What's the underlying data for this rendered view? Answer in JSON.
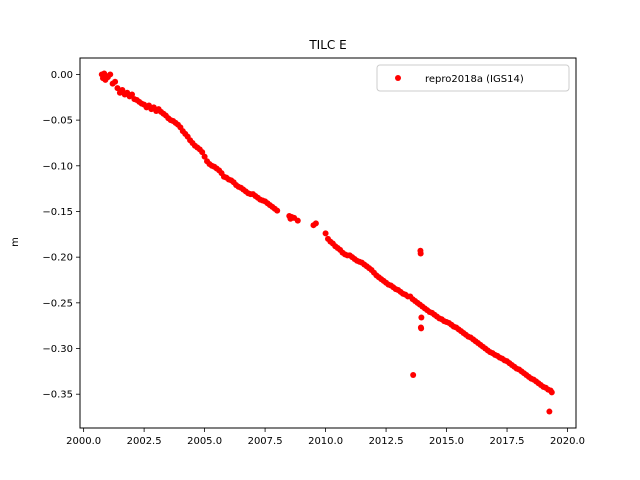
{
  "chart_data": {
    "type": "scatter",
    "title": "TILC E",
    "xlabel": "",
    "ylabel": "m",
    "xlim": [
      1999.85,
      2020.35
    ],
    "ylim": [
      -0.387,
      0.018
    ],
    "xticks": [
      2000.0,
      2002.5,
      2005.0,
      2007.5,
      2010.0,
      2012.5,
      2015.0,
      2017.5,
      2020.0
    ],
    "xtick_labels": [
      "2000.0",
      "2002.5",
      "2005.0",
      "2007.5",
      "2010.0",
      "2012.5",
      "2015.0",
      "2017.5",
      "2020.0"
    ],
    "yticks": [
      0.0,
      -0.05,
      -0.1,
      -0.15,
      -0.2,
      -0.25,
      -0.3,
      -0.35
    ],
    "ytick_labels": [
      "0.00",
      "−0.05",
      "−0.10",
      "−0.15",
      "−0.20",
      "−0.25",
      "−0.30",
      "−0.35"
    ],
    "grid": false,
    "legend_position": "top-right",
    "series": [
      {
        "name": "repro2018a (IGS14)",
        "color": "#ff0000",
        "marker": "circle",
        "points": [
          [
            2000.75,
            0.0
          ],
          [
            2000.8,
            -0.004
          ],
          [
            2000.85,
            0.001
          ],
          [
            2000.9,
            -0.006
          ],
          [
            2000.95,
            -0.002
          ],
          [
            2001.0,
            -0.003
          ],
          [
            2001.1,
            0.0
          ],
          [
            2001.2,
            -0.01
          ],
          [
            2001.3,
            -0.008
          ],
          [
            2001.4,
            -0.015
          ],
          [
            2001.5,
            -0.02
          ],
          [
            2001.6,
            -0.017
          ],
          [
            2001.7,
            -0.022
          ],
          [
            2001.8,
            -0.02
          ],
          [
            2001.9,
            -0.024
          ],
          [
            2002.0,
            -0.022
          ],
          [
            2002.1,
            -0.027
          ],
          [
            2002.2,
            -0.028
          ],
          [
            2002.3,
            -0.03
          ],
          [
            2002.4,
            -0.032
          ],
          [
            2002.5,
            -0.033
          ],
          [
            2002.6,
            -0.036
          ],
          [
            2002.7,
            -0.034
          ],
          [
            2002.8,
            -0.038
          ],
          [
            2002.9,
            -0.036
          ],
          [
            2003.0,
            -0.04
          ],
          [
            2003.1,
            -0.038
          ],
          [
            2003.2,
            -0.041
          ],
          [
            2003.3,
            -0.043
          ],
          [
            2003.4,
            -0.045
          ],
          [
            2003.5,
            -0.048
          ],
          [
            2003.6,
            -0.05
          ],
          [
            2003.7,
            -0.051
          ],
          [
            2003.8,
            -0.053
          ],
          [
            2003.9,
            -0.055
          ],
          [
            2004.0,
            -0.058
          ],
          [
            2004.1,
            -0.062
          ],
          [
            2004.2,
            -0.065
          ],
          [
            2004.3,
            -0.068
          ],
          [
            2004.4,
            -0.072
          ],
          [
            2004.5,
            -0.075
          ],
          [
            2004.6,
            -0.078
          ],
          [
            2004.7,
            -0.08
          ],
          [
            2004.8,
            -0.082
          ],
          [
            2004.9,
            -0.085
          ],
          [
            2005.0,
            -0.09
          ],
          [
            2005.1,
            -0.095
          ],
          [
            2005.2,
            -0.098
          ],
          [
            2005.3,
            -0.1
          ],
          [
            2005.4,
            -0.101
          ],
          [
            2005.5,
            -0.103
          ],
          [
            2005.6,
            -0.105
          ],
          [
            2005.7,
            -0.108
          ],
          [
            2005.8,
            -0.112
          ],
          [
            2005.9,
            -0.113
          ],
          [
            2006.0,
            -0.115
          ],
          [
            2006.1,
            -0.116
          ],
          [
            2006.2,
            -0.118
          ],
          [
            2006.3,
            -0.121
          ],
          [
            2006.4,
            -0.123
          ],
          [
            2006.5,
            -0.124
          ],
          [
            2006.6,
            -0.126
          ],
          [
            2006.7,
            -0.128
          ],
          [
            2006.8,
            -0.13
          ],
          [
            2006.9,
            -0.131
          ],
          [
            2007.0,
            -0.131
          ],
          [
            2007.1,
            -0.133
          ],
          [
            2007.2,
            -0.135
          ],
          [
            2007.3,
            -0.137
          ],
          [
            2007.4,
            -0.138
          ],
          [
            2007.5,
            -0.139
          ],
          [
            2007.6,
            -0.141
          ],
          [
            2007.7,
            -0.143
          ],
          [
            2007.8,
            -0.145
          ],
          [
            2007.9,
            -0.147
          ],
          [
            2008.0,
            -0.149
          ],
          [
            2008.5,
            -0.155
          ],
          [
            2008.55,
            -0.158
          ],
          [
            2008.6,
            -0.156
          ],
          [
            2008.7,
            -0.157
          ],
          [
            2008.85,
            -0.16
          ],
          [
            2009.5,
            -0.165
          ],
          [
            2009.6,
            -0.163
          ],
          [
            2010.0,
            -0.174
          ],
          [
            2010.1,
            -0.18
          ],
          [
            2010.2,
            -0.183
          ],
          [
            2010.3,
            -0.185
          ],
          [
            2010.4,
            -0.188
          ],
          [
            2010.5,
            -0.19
          ],
          [
            2010.6,
            -0.192
          ],
          [
            2010.7,
            -0.195
          ],
          [
            2010.8,
            -0.197
          ],
          [
            2010.9,
            -0.198
          ],
          [
            2011.0,
            -0.198
          ],
          [
            2011.1,
            -0.2
          ],
          [
            2011.2,
            -0.202
          ],
          [
            2011.3,
            -0.204
          ],
          [
            2011.4,
            -0.205
          ],
          [
            2011.5,
            -0.206
          ],
          [
            2011.6,
            -0.208
          ],
          [
            2011.7,
            -0.21
          ],
          [
            2011.8,
            -0.212
          ],
          [
            2011.9,
            -0.214
          ],
          [
            2012.0,
            -0.217
          ],
          [
            2012.1,
            -0.22
          ],
          [
            2012.2,
            -0.222
          ],
          [
            2012.3,
            -0.224
          ],
          [
            2012.4,
            -0.226
          ],
          [
            2012.5,
            -0.228
          ],
          [
            2012.6,
            -0.23
          ],
          [
            2012.7,
            -0.231
          ],
          [
            2012.8,
            -0.233
          ],
          [
            2012.9,
            -0.235
          ],
          [
            2013.0,
            -0.236
          ],
          [
            2013.1,
            -0.238
          ],
          [
            2013.2,
            -0.24
          ],
          [
            2013.3,
            -0.241
          ],
          [
            2013.4,
            -0.243
          ],
          [
            2013.5,
            -0.243
          ],
          [
            2013.6,
            -0.246
          ],
          [
            2013.62,
            -0.329
          ],
          [
            2013.7,
            -0.248
          ],
          [
            2013.8,
            -0.25
          ],
          [
            2013.9,
            -0.252
          ],
          [
            2013.92,
            -0.193
          ],
          [
            2013.93,
            -0.196
          ],
          [
            2013.94,
            -0.277
          ],
          [
            2013.95,
            -0.278
          ],
          [
            2013.96,
            -0.266
          ],
          [
            2014.0,
            -0.254
          ],
          [
            2014.1,
            -0.256
          ],
          [
            2014.2,
            -0.258
          ],
          [
            2014.3,
            -0.26
          ],
          [
            2014.4,
            -0.261
          ],
          [
            2014.5,
            -0.263
          ],
          [
            2014.6,
            -0.265
          ],
          [
            2014.7,
            -0.267
          ],
          [
            2014.8,
            -0.268
          ],
          [
            2014.9,
            -0.27
          ],
          [
            2015.0,
            -0.271
          ],
          [
            2015.1,
            -0.272
          ],
          [
            2015.2,
            -0.274
          ],
          [
            2015.3,
            -0.276
          ],
          [
            2015.4,
            -0.277
          ],
          [
            2015.5,
            -0.279
          ],
          [
            2015.6,
            -0.281
          ],
          [
            2015.7,
            -0.283
          ],
          [
            2015.8,
            -0.285
          ],
          [
            2015.9,
            -0.287
          ],
          [
            2016.0,
            -0.288
          ],
          [
            2016.1,
            -0.29
          ],
          [
            2016.2,
            -0.292
          ],
          [
            2016.3,
            -0.294
          ],
          [
            2016.4,
            -0.296
          ],
          [
            2016.5,
            -0.298
          ],
          [
            2016.6,
            -0.3
          ],
          [
            2016.7,
            -0.302
          ],
          [
            2016.8,
            -0.304
          ],
          [
            2016.9,
            -0.305
          ],
          [
            2017.0,
            -0.307
          ],
          [
            2017.1,
            -0.308
          ],
          [
            2017.2,
            -0.31
          ],
          [
            2017.3,
            -0.311
          ],
          [
            2017.4,
            -0.313
          ],
          [
            2017.5,
            -0.314
          ],
          [
            2017.6,
            -0.316
          ],
          [
            2017.7,
            -0.318
          ],
          [
            2017.8,
            -0.32
          ],
          [
            2017.9,
            -0.322
          ],
          [
            2018.0,
            -0.323
          ],
          [
            2018.1,
            -0.325
          ],
          [
            2018.2,
            -0.327
          ],
          [
            2018.3,
            -0.329
          ],
          [
            2018.4,
            -0.331
          ],
          [
            2018.5,
            -0.333
          ],
          [
            2018.6,
            -0.334
          ],
          [
            2018.7,
            -0.336
          ],
          [
            2018.8,
            -0.338
          ],
          [
            2018.9,
            -0.34
          ],
          [
            2019.0,
            -0.342
          ],
          [
            2019.1,
            -0.343
          ],
          [
            2019.2,
            -0.345
          ],
          [
            2019.25,
            -0.369
          ],
          [
            2019.3,
            -0.346
          ],
          [
            2019.35,
            -0.348
          ]
        ]
      }
    ]
  }
}
